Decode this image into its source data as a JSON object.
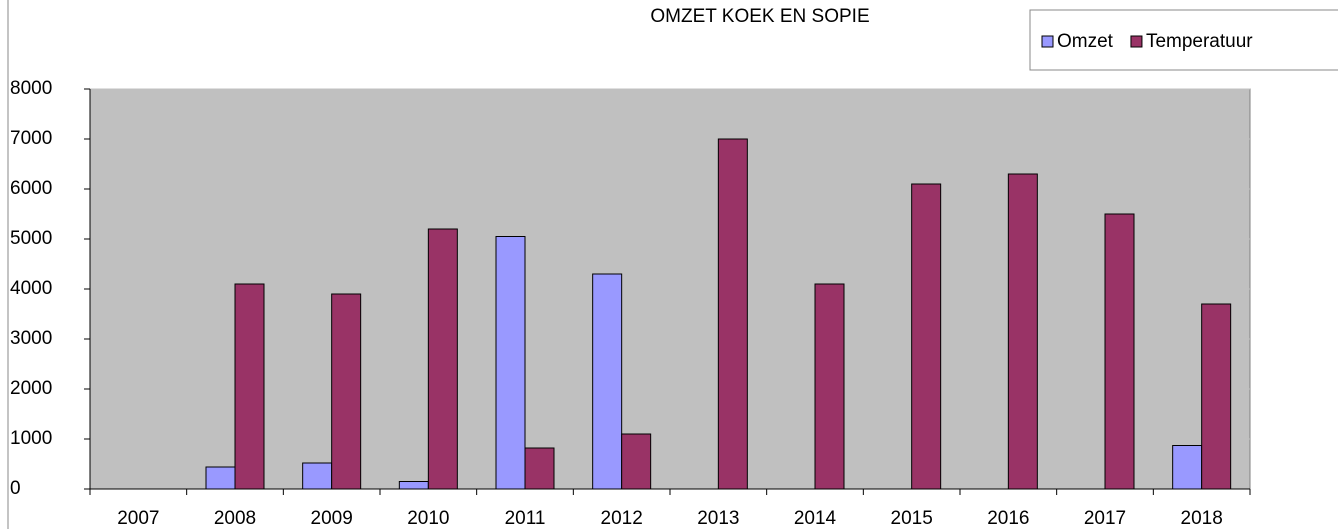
{
  "chart_data": {
    "type": "bar",
    "title": "OMZET KOEK EN SOPIE",
    "categories": [
      "2007",
      "2008",
      "2009",
      "2010",
      "2011",
      "2012",
      "2013",
      "2014",
      "2015",
      "2016",
      "2017",
      "2018"
    ],
    "series": [
      {
        "name": "Omzet",
        "color": "#9999ff",
        "values": [
          0,
          440,
          520,
          150,
          5050,
          4300,
          0,
          0,
          0,
          0,
          0,
          870
        ]
      },
      {
        "name": "Temperatuur",
        "color": "#993366",
        "values": [
          0,
          4100,
          3900,
          5200,
          820,
          1100,
          7000,
          4100,
          6100,
          6300,
          5500,
          3700
        ]
      }
    ],
    "ylim": [
      0,
      8000
    ],
    "yticks": [
      0,
      1000,
      2000,
      3000,
      4000,
      5000,
      6000,
      7000,
      8000
    ],
    "grid": true,
    "legend": "top-right"
  }
}
